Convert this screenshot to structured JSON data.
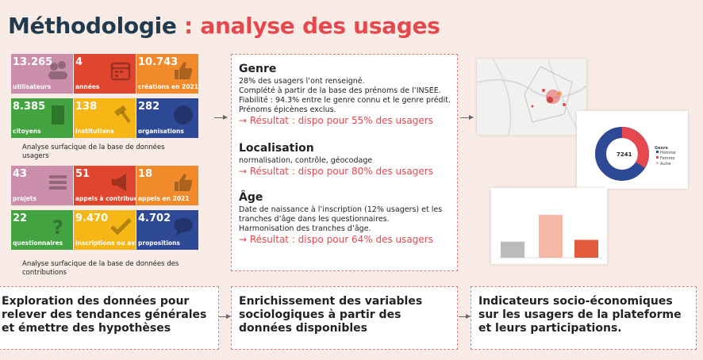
{
  "title": {
    "part1": "Méthodologie",
    "part2": ": analyse des usages"
  },
  "tiles_group1": [
    {
      "num": "13.265",
      "label": "utilisateurs",
      "color": "pink",
      "icon": "users-icon"
    },
    {
      "num": "4",
      "label": "années",
      "color": "red",
      "icon": "calendar-icon"
    },
    {
      "num": "10.743",
      "label": "créations en 2021",
      "color": "orange",
      "icon": "thumbs-up-icon"
    },
    {
      "num": "8.385",
      "label": "citoyens",
      "color": "green",
      "icon": "building-icon"
    },
    {
      "num": "138",
      "label": "institutions",
      "color": "yellow",
      "icon": "gavel-icon"
    },
    {
      "num": "282",
      "label": "organisations",
      "color": "blue",
      "icon": "globe-icon"
    }
  ],
  "caption1": "Analyse surfacique de la base de données usagers",
  "tiles_group2": [
    {
      "num": "43",
      "label": "projets",
      "color": "pink",
      "icon": "list-icon"
    },
    {
      "num": "51",
      "label": "appels à contribuer",
      "color": "red",
      "icon": "megaphone-icon"
    },
    {
      "num": "18",
      "label": "appels en 2021",
      "color": "orange",
      "icon": "thumbs-up-icon"
    },
    {
      "num": "22",
      "label": "questionnaires",
      "color": "green",
      "icon": "question-icon"
    },
    {
      "num": "9.470",
      "label": "inscriptions ou avis",
      "color": "yellow",
      "icon": "check-icon"
    },
    {
      "num": "4.702",
      "label": "propositions",
      "color": "blue",
      "icon": "speech-bubble-icon"
    }
  ],
  "caption2": "Analyse surfacique de la base de données des contributions",
  "middle": {
    "genre": {
      "title": "Genre",
      "lines": [
        "28% des usagers l’ont renseigné.",
        "Complété à partir de la base des prénoms de l’INSEE.",
        "Fiabilité : 94.3% entre le genre connu et le genre prédit.",
        "Prénoms épicènes exclus."
      ],
      "result": "→ Résultat : dispo pour 55% des usagers"
    },
    "localisation": {
      "title": "Localisation",
      "lines": [
        "normalisation, contrôle, géocodage"
      ],
      "result": "→ Résultat : dispo pour 80% des usagers"
    },
    "age": {
      "title": "Âge",
      "lines": [
        "Date de naissance à l’inscription (12% usagers) et les",
        "tranches d’âge dans les questionnaires.",
        "Harmonisation des tranches d’âge."
      ],
      "result": "→ Résultat : dispo pour 64% des usagers"
    }
  },
  "donut": {
    "center": "7241",
    "legend_title": "Genre",
    "legend": [
      "Homme",
      "Femme",
      "Autre"
    ],
    "colors": [
      "#2e4a96",
      "#e5484d",
      "#cccccc"
    ]
  },
  "bar_chart": {
    "values": [
      27,
      72,
      30
    ],
    "colors": [
      "#bbbbbb",
      "#f4b8a6",
      "#e35a3d"
    ]
  },
  "bottom": [
    "Exploration des données pour relever des tendances générales et émettre des hypothèses",
    "Enrichissement des variables sociologiques à partir des données disponibles",
    "Indicateurs socio-économiques sur les usagers de la plateforme et leurs participations."
  ]
}
